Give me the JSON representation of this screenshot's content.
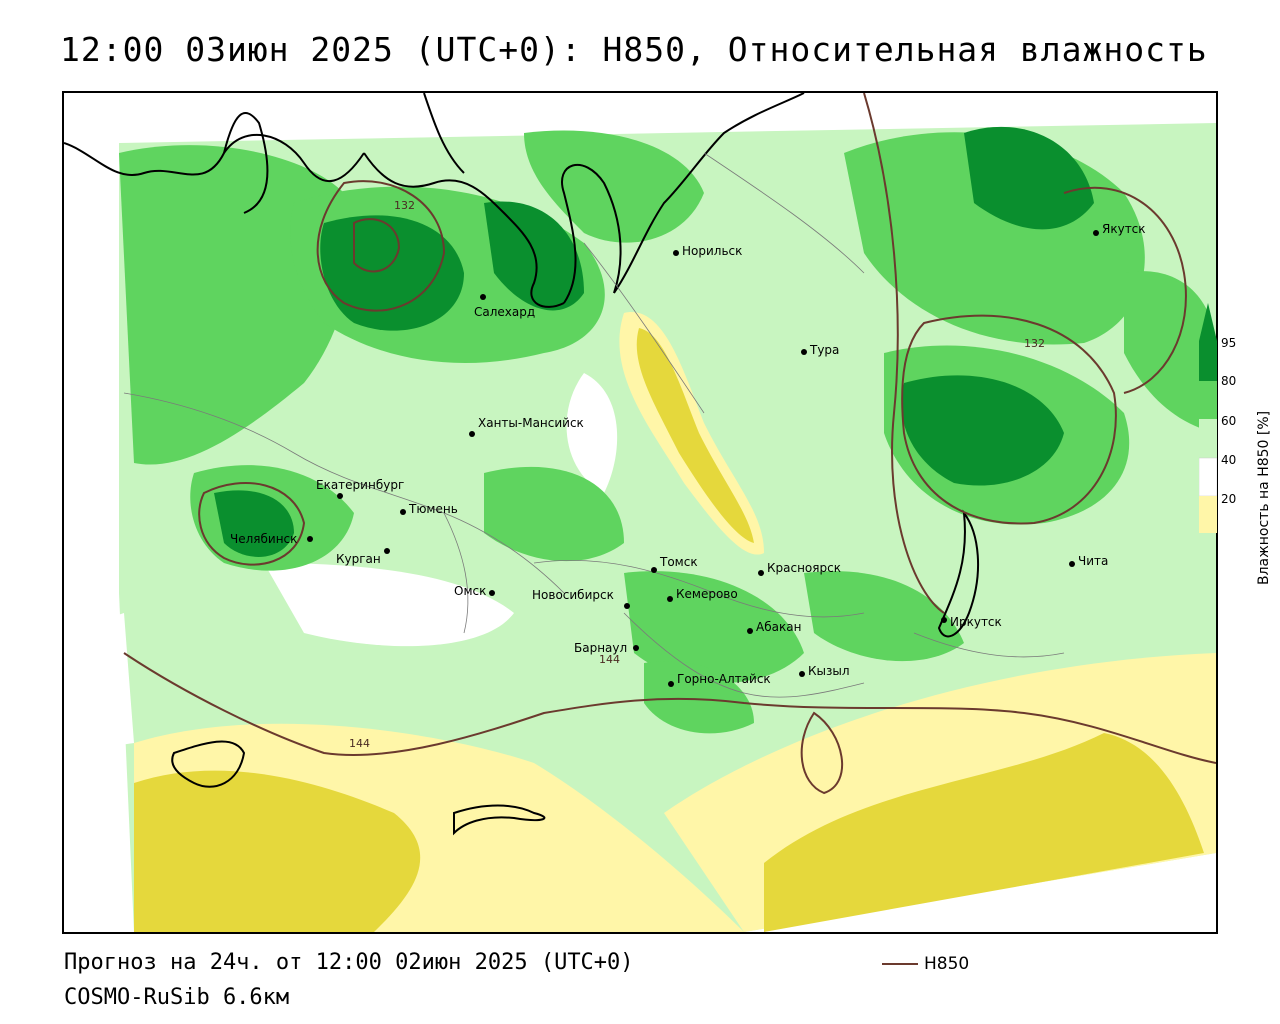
{
  "title": "12:00 03июн 2025 (UTC+0): H850, Относительная влажность",
  "forecast_line": "Прогноз на 24ч. от 12:00 02июн 2025 (UTC+0)",
  "model_line": "COSMO-RuSib 6.6км",
  "series_legend": {
    "label": "H850",
    "color": "#6b3a2e"
  },
  "colorbar": {
    "title": "Влажность на H850 [%]",
    "ticks": [
      "95",
      "80",
      "60",
      "40",
      "20"
    ],
    "colors": {
      "very_dry": "#e5d83c",
      "dry": "#fff6a8",
      "neutral": "#ffffff",
      "moist": "#c8f5c0",
      "wet": "#5fd45f",
      "very_wet": "#0a8f2e"
    }
  },
  "cities": [
    {
      "name": "Норильск"
    },
    {
      "name": "Салехард"
    },
    {
      "name": "Тура"
    },
    {
      "name": "Якутск"
    },
    {
      "name": "Ханты-Мансийск"
    },
    {
      "name": "Екатеринбург"
    },
    {
      "name": "Тюмень"
    },
    {
      "name": "Челябинск"
    },
    {
      "name": "Курган"
    },
    {
      "name": "Омск"
    },
    {
      "name": "Новосибирск"
    },
    {
      "name": "Томск"
    },
    {
      "name": "Кемерово"
    },
    {
      "name": "Красноярск"
    },
    {
      "name": "Барнаул"
    },
    {
      "name": "Абакан"
    },
    {
      "name": "Горно-Алтайск"
    },
    {
      "name": "Кызыл"
    },
    {
      "name": "Иркутск"
    },
    {
      "name": "Чита"
    }
  ],
  "isoline_labels": [
    "132",
    "132",
    "144",
    "144"
  ]
}
